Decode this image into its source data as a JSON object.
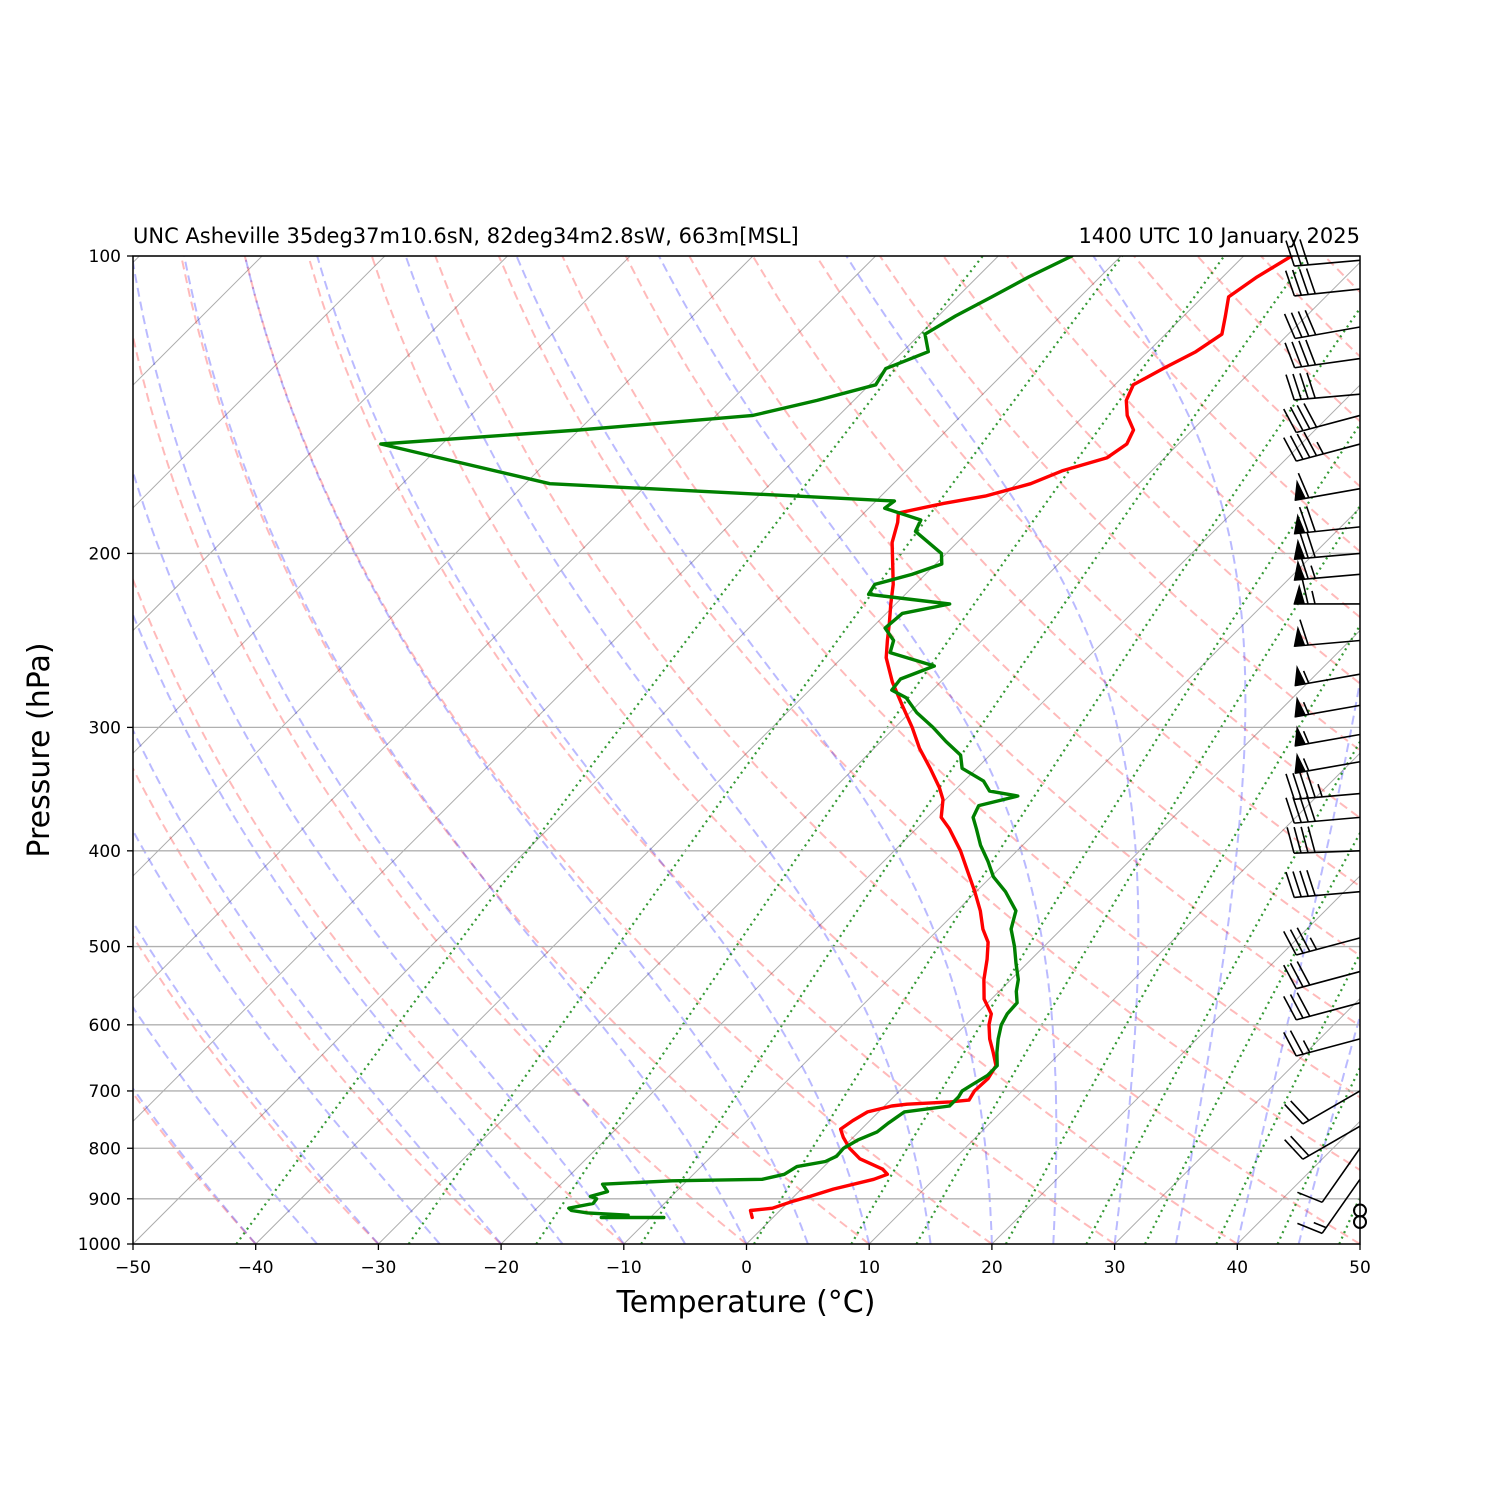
{
  "header": {
    "left_title": "UNC Asheville 35deg37m10.6sN, 82deg34m2.8sW, 663m[MSL]",
    "right_title": "1400 UTC 10 January 2025"
  },
  "chart_data": {
    "type": "line",
    "subtype": "skew-T log-p",
    "xlabel": "Temperature (°C)",
    "ylabel": "Pressure (hPa)",
    "xlim": [
      -50,
      50
    ],
    "ylim": [
      1000,
      100
    ],
    "y_scale": "log",
    "skew_degrees": 45,
    "grid": true,
    "x_ticks": [
      "−50",
      "−40",
      "−30",
      "−20",
      "−10",
      "0",
      "10",
      "20",
      "30",
      "40",
      "50"
    ],
    "y_ticks": [
      "1000",
      "900",
      "800",
      "700",
      "600",
      "500",
      "400",
      "300",
      "200",
      "100"
    ],
    "series": [
      {
        "label": "temperature",
        "color": "#ff0000",
        "points": [
          [
            940,
            -1.7
          ],
          [
            925,
            -2.4
          ],
          [
            920,
            -0.8
          ],
          [
            905,
            0.3
          ],
          [
            895,
            1.3
          ],
          [
            880,
            2.6
          ],
          [
            860,
            5.1
          ],
          [
            850,
            5.8
          ],
          [
            840,
            5.0
          ],
          [
            820,
            2.3
          ],
          [
            800,
            0.6
          ],
          [
            780,
            -0.8
          ],
          [
            765,
            -1.7
          ],
          [
            750,
            -1.4
          ],
          [
            735,
            -0.9
          ],
          [
            725,
            0.6
          ],
          [
            722,
            1.7
          ],
          [
            718,
            5.0
          ],
          [
            715,
            6.4
          ],
          [
            700,
            6.1
          ],
          [
            680,
            6.2
          ],
          [
            660,
            5.8
          ],
          [
            640,
            4.5
          ],
          [
            620,
            3.1
          ],
          [
            600,
            1.9
          ],
          [
            585,
            1.2
          ],
          [
            565,
            -0.6
          ],
          [
            540,
            -2.2
          ],
          [
            515,
            -3.6
          ],
          [
            495,
            -4.9
          ],
          [
            480,
            -6.4
          ],
          [
            460,
            -8.1
          ],
          [
            440,
            -10.1
          ],
          [
            420,
            -12.3
          ],
          [
            400,
            -14.6
          ],
          [
            380,
            -17.3
          ],
          [
            370,
            -18.9
          ],
          [
            355,
            -20.2
          ],
          [
            345,
            -21.5
          ],
          [
            330,
            -23.8
          ],
          [
            315,
            -26.3
          ],
          [
            300,
            -28.6
          ],
          [
            285,
            -31.2
          ],
          [
            270,
            -33.9
          ],
          [
            255,
            -36.4
          ],
          [
            245,
            -37.7
          ],
          [
            235,
            -39.0
          ],
          [
            225,
            -40.4
          ],
          [
            215,
            -41.8
          ],
          [
            205,
            -43.5
          ],
          [
            195,
            -45.3
          ],
          [
            186,
            -46.5
          ],
          [
            182,
            -47.2
          ],
          [
            178,
            -44.3
          ],
          [
            175,
            -41.5
          ],
          [
            170,
            -38.8
          ],
          [
            165,
            -37.3
          ],
          [
            160,
            -34.7
          ],
          [
            155,
            -34.2
          ],
          [
            150,
            -34.8
          ],
          [
            145,
            -36.5
          ],
          [
            140,
            -37.8
          ],
          [
            135,
            -38.5
          ],
          [
            130,
            -37.4
          ],
          [
            125,
            -36.1
          ],
          [
            120,
            -35.4
          ],
          [
            115,
            -36.6
          ],
          [
            110,
            -37.9
          ],
          [
            105,
            -37.2
          ],
          [
            100,
            -36.1
          ]
        ]
      },
      {
        "label": "dewpoint",
        "color": "#008000",
        "points": [
          [
            940,
            -8.9
          ],
          [
            940,
            -14.0
          ],
          [
            935,
            -12.0
          ],
          [
            930,
            -15.5
          ],
          [
            925,
            -17.0
          ],
          [
            920,
            -17.4
          ],
          [
            910,
            -15.8
          ],
          [
            900,
            -15.9
          ],
          [
            895,
            -16.6
          ],
          [
            885,
            -15.6
          ],
          [
            870,
            -16.6
          ],
          [
            863,
            -11.2
          ],
          [
            860,
            -4.0
          ],
          [
            850,
            -2.6
          ],
          [
            835,
            -2.2
          ],
          [
            825,
            -0.3
          ],
          [
            815,
            0.2
          ],
          [
            800,
            0.1
          ],
          [
            785,
            0.6
          ],
          [
            770,
            1.5
          ],
          [
            755,
            1.7
          ],
          [
            745,
            1.9
          ],
          [
            735,
            2.1
          ],
          [
            725,
            5.3
          ],
          [
            710,
            5.3
          ],
          [
            700,
            5.1
          ],
          [
            690,
            5.4
          ],
          [
            675,
            5.9
          ],
          [
            660,
            5.9
          ],
          [
            640,
            4.8
          ],
          [
            620,
            3.8
          ],
          [
            600,
            2.9
          ],
          [
            585,
            2.5
          ],
          [
            570,
            2.4
          ],
          [
            555,
            1.4
          ],
          [
            540,
            0.6
          ],
          [
            520,
            -0.9
          ],
          [
            500,
            -2.4
          ],
          [
            480,
            -4.1
          ],
          [
            460,
            -5.2
          ],
          [
            440,
            -7.6
          ],
          [
            425,
            -9.8
          ],
          [
            410,
            -11.5
          ],
          [
            395,
            -13.4
          ],
          [
            380,
            -15.1
          ],
          [
            370,
            -16.3
          ],
          [
            360,
            -16.8
          ],
          [
            352,
            -14.4
          ],
          [
            348,
            -17.1
          ],
          [
            340,
            -18.4
          ],
          [
            330,
            -21.2
          ],
          [
            320,
            -22.4
          ],
          [
            310,
            -24.7
          ],
          [
            300,
            -26.9
          ],
          [
            290,
            -29.4
          ],
          [
            280,
            -31.5
          ],
          [
            275,
            -33.3
          ],
          [
            268,
            -33.5
          ],
          [
            260,
            -31.8
          ],
          [
            252,
            -36.5
          ],
          [
            245,
            -37.2
          ],
          [
            238,
            -38.9
          ],
          [
            230,
            -38.7
          ],
          [
            225,
            -35.6
          ],
          [
            220,
            -43.0
          ],
          [
            215,
            -43.3
          ],
          [
            210,
            -41.1
          ],
          [
            205,
            -39.5
          ],
          [
            200,
            -40.4
          ],
          [
            190,
            -44.3
          ],
          [
            185,
            -44.8
          ],
          [
            180,
            -48.7
          ],
          [
            177,
            -48.5
          ],
          [
            170,
            -78.0
          ],
          [
            155,
            -95.0
          ],
          [
            150,
            -80.0
          ],
          [
            145,
            -67.0
          ],
          [
            140,
            -63.0
          ],
          [
            135,
            -59.5
          ],
          [
            130,
            -60.0
          ],
          [
            125,
            -57.9
          ],
          [
            120,
            -59.6
          ],
          [
            115,
            -58.6
          ],
          [
            110,
            -57.2
          ],
          [
            105,
            -55.8
          ],
          [
            100,
            -54.0
          ]
        ]
      }
    ],
    "wind_barbs": [
      {
        "p": 950,
        "speed_kt": 0
      },
      {
        "p": 925,
        "speed_kt": 0
      },
      {
        "p": 860,
        "speed_kt": 15,
        "dir_deg": 35
      },
      {
        "p": 800,
        "speed_kt": 10,
        "dir_deg": 35
      },
      {
        "p": 760,
        "speed_kt": 20,
        "dir_deg": 60
      },
      {
        "p": 700,
        "speed_kt": 20,
        "dir_deg": 60
      },
      {
        "p": 620,
        "speed_kt": 25,
        "dir_deg": 75
      },
      {
        "p": 570,
        "speed_kt": 30,
        "dir_deg": 75
      },
      {
        "p": 530,
        "speed_kt": 30,
        "dir_deg": 75
      },
      {
        "p": 490,
        "speed_kt": 35,
        "dir_deg": 75
      },
      {
        "p": 440,
        "speed_kt": 40,
        "dir_deg": 85
      },
      {
        "p": 400,
        "speed_kt": 40,
        "dir_deg": 88
      },
      {
        "p": 370,
        "speed_kt": 40,
        "dir_deg": 85
      },
      {
        "p": 350,
        "speed_kt": 45,
        "dir_deg": 85
      },
      {
        "p": 325,
        "speed_kt": 55,
        "dir_deg": 80
      },
      {
        "p": 305,
        "speed_kt": 55,
        "dir_deg": 80
      },
      {
        "p": 285,
        "speed_kt": 55,
        "dir_deg": 80
      },
      {
        "p": 265,
        "speed_kt": 55,
        "dir_deg": 80
      },
      {
        "p": 245,
        "speed_kt": 60,
        "dir_deg": 85
      },
      {
        "p": 225,
        "speed_kt": 65,
        "dir_deg": 90
      },
      {
        "p": 210,
        "speed_kt": 65,
        "dir_deg": 85
      },
      {
        "p": 200,
        "speed_kt": 70,
        "dir_deg": 85
      },
      {
        "p": 188,
        "speed_kt": 70,
        "dir_deg": 84
      },
      {
        "p": 172,
        "speed_kt": 60,
        "dir_deg": 80
      },
      {
        "p": 155,
        "speed_kt": 45,
        "dir_deg": 75
      },
      {
        "p": 145,
        "speed_kt": 40,
        "dir_deg": 75
      },
      {
        "p": 138,
        "speed_kt": 40,
        "dir_deg": 85
      },
      {
        "p": 127,
        "speed_kt": 40,
        "dir_deg": 82
      },
      {
        "p": 118,
        "speed_kt": 40,
        "dir_deg": 80
      },
      {
        "p": 108,
        "speed_kt": 40,
        "dir_deg": 84
      },
      {
        "p": 101,
        "speed_kt": 30,
        "dir_deg": 85
      }
    ],
    "background_lines": {
      "isotherms": {
        "color": "#000000",
        "style": "solid"
      },
      "dry_adiabats": {
        "color": "#ff0000",
        "style": "dashed"
      },
      "moist_adiabats": {
        "color": "#0000ff",
        "style": "dashed"
      },
      "mixing_ratio_lines": {
        "color": "#008000",
        "style": "dotted"
      }
    }
  }
}
